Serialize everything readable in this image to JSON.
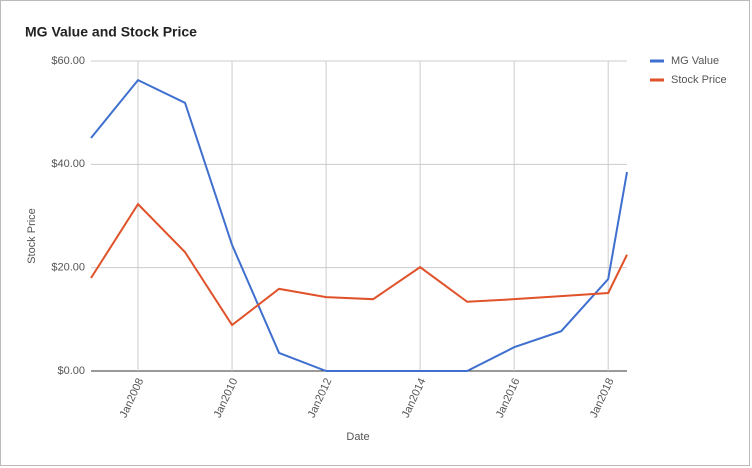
{
  "chart_data": {
    "type": "line",
    "title": "MG Value and Stock Price",
    "x_label": "Date",
    "y_label": "Stock Price",
    "x": [
      2007,
      2008,
      2009,
      2010,
      2011,
      2012,
      2013,
      2014,
      2015,
      2016,
      2017,
      2018,
      2018.4
    ],
    "series": [
      {
        "name": "MG Value",
        "color": "#3f6fcf",
        "values": [
          45.1,
          56.3,
          51.9,
          24.4,
          3.5,
          0,
          0,
          0,
          0,
          4.6,
          7.7,
          17.8,
          38.5
        ]
      },
      {
        "name": "Stock Price",
        "color": "#e0522a",
        "values": [
          18,
          32.3,
          23,
          8.9,
          15.9,
          14.3,
          13.9,
          20.1,
          13.4,
          13.9,
          14.5,
          15.1,
          22.5
        ]
      }
    ],
    "xlim": [
      2007,
      2018.4
    ],
    "xticks": [
      {
        "value": 2008,
        "label": "Jan2008"
      },
      {
        "value": 2010,
        "label": "Jan2010"
      },
      {
        "value": 2012,
        "label": "Jan2012"
      },
      {
        "value": 2014,
        "label": "Jan2014"
      },
      {
        "value": 2016,
        "label": "Jan2016"
      },
      {
        "value": 2018,
        "label": "Jan2018"
      }
    ],
    "ylim": [
      0,
      60
    ],
    "yticks": [
      {
        "value": 0,
        "label": "$0.00"
      },
      {
        "value": 20,
        "label": "$20.00"
      },
      {
        "value": 40,
        "label": "$40.00"
      },
      {
        "value": 60,
        "label": "$60.00"
      }
    ],
    "grid": true,
    "legend": "right"
  }
}
